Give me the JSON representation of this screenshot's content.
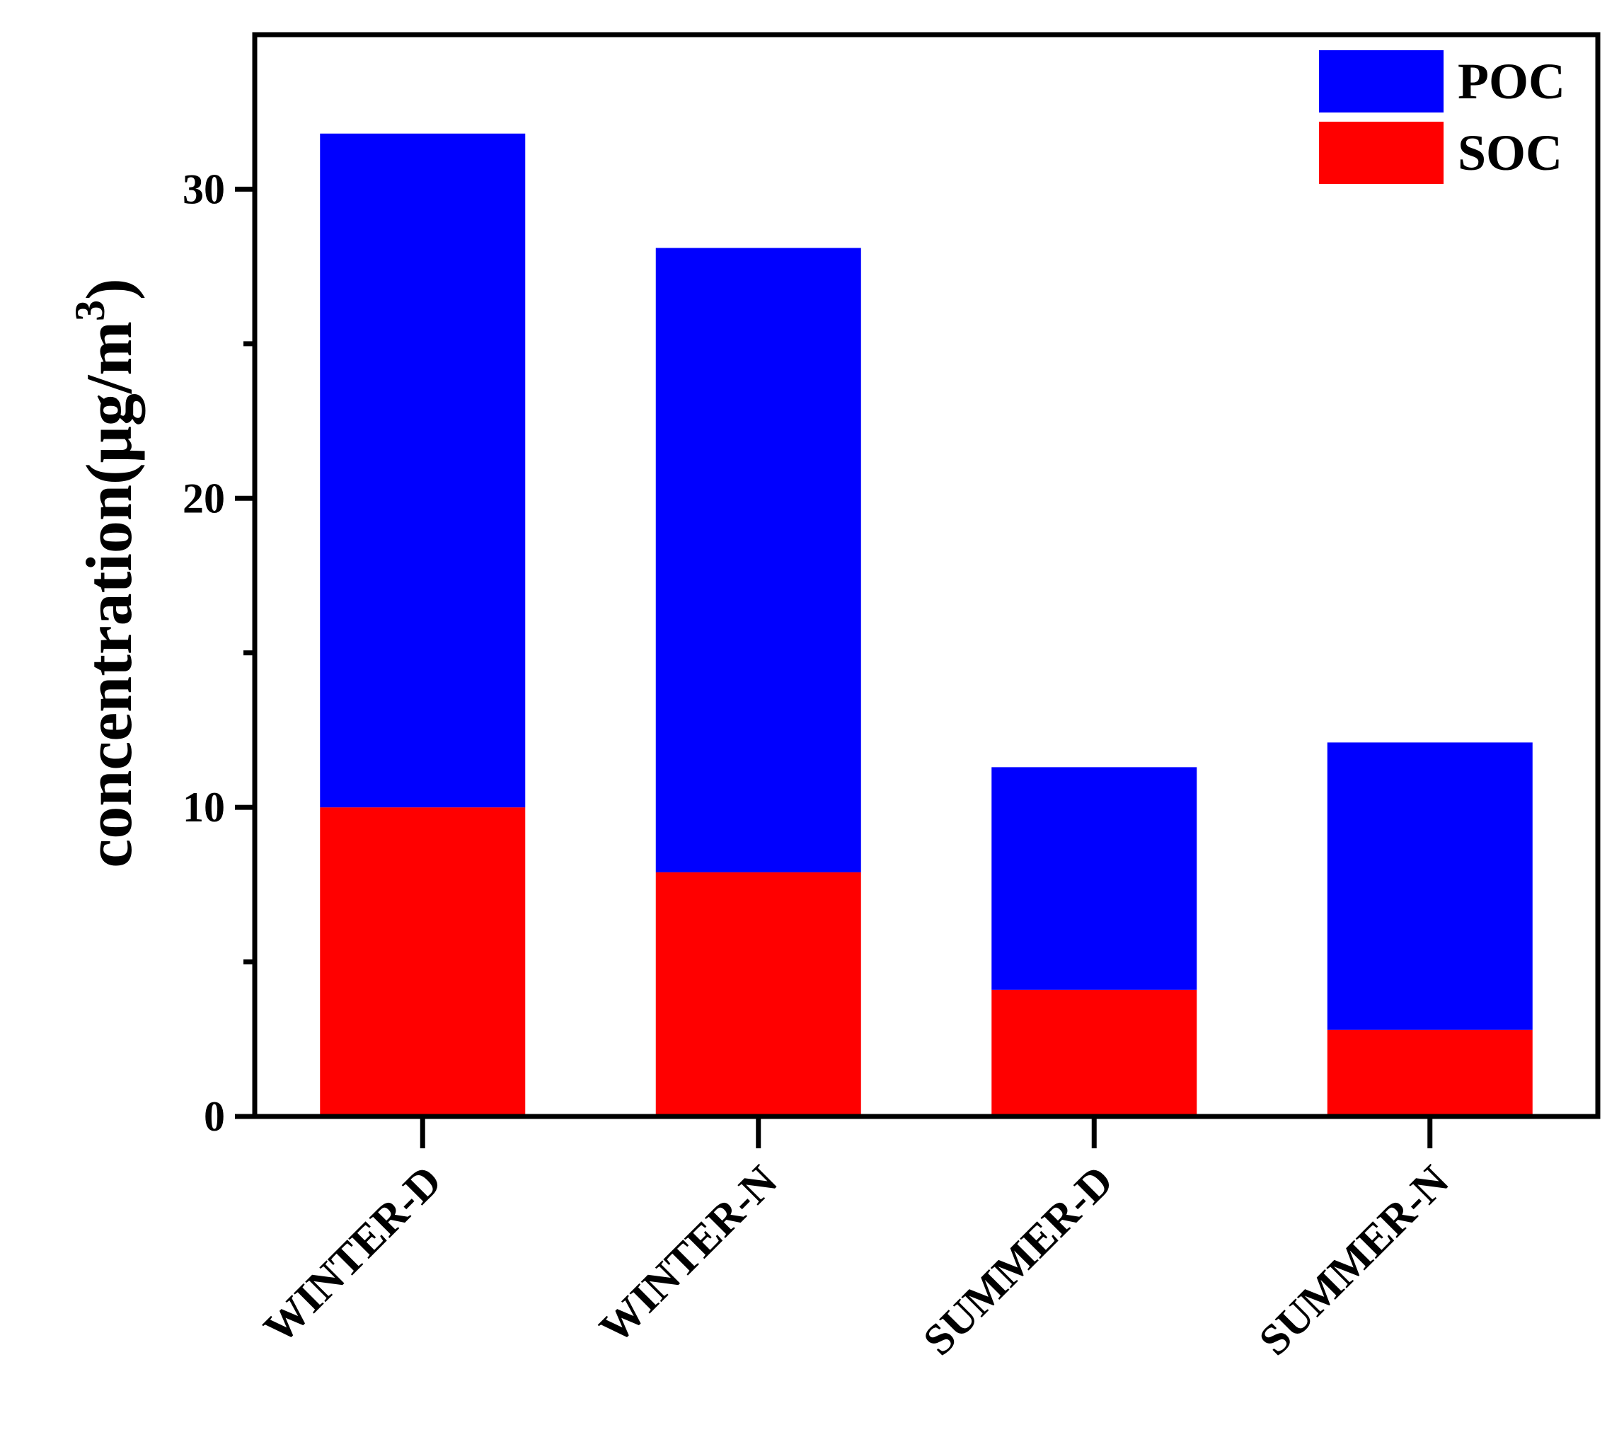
{
  "chart_data": {
    "type": "bar",
    "stacked": true,
    "categories": [
      "WINTER-D",
      "WINTER-N",
      "SUMMER-D",
      "SUMMER-N"
    ],
    "series": [
      {
        "name": "SOC",
        "color": "#ff0000",
        "values": [
          10.0,
          7.9,
          4.1,
          2.8
        ]
      },
      {
        "name": "POC",
        "color": "#0000ff",
        "values": [
          21.8,
          20.2,
          7.2,
          9.3
        ]
      }
    ],
    "title": "",
    "xlabel": "",
    "ylabel": "concentration(μg/m",
    "ylabel_superscript": "3",
    "ylabel_close": ")",
    "ylim": [
      0,
      35
    ],
    "yticks": [
      0,
      10,
      20,
      30
    ],
    "yticks_minor": [
      5,
      15,
      25
    ],
    "grid": false,
    "legend": {
      "position": "top-right",
      "order": [
        "POC",
        "SOC"
      ]
    }
  }
}
